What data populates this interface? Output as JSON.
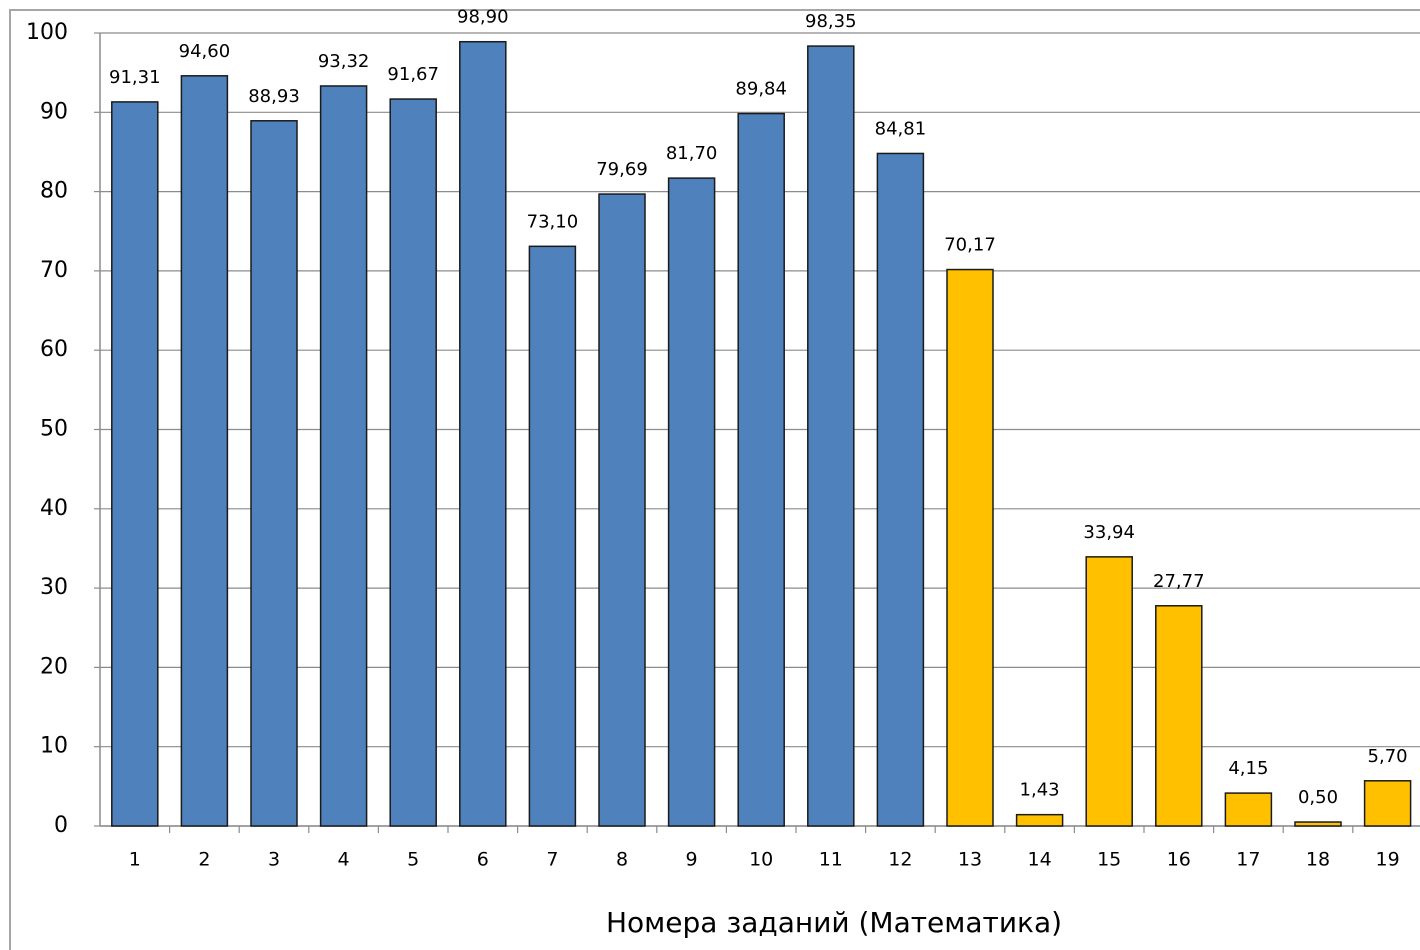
{
  "chart_data": {
    "type": "bar",
    "x_label": "Номера заданий (Математика)",
    "categories": [
      "1",
      "2",
      "3",
      "4",
      "5",
      "6",
      "7",
      "8",
      "9",
      "10",
      "11",
      "12",
      "13",
      "14",
      "15",
      "16",
      "17",
      "18",
      "19"
    ],
    "values": [
      91.31,
      94.6,
      88.93,
      93.32,
      91.67,
      98.9,
      73.1,
      79.69,
      81.7,
      89.84,
      98.35,
      84.81,
      70.17,
      1.43,
      33.94,
      27.77,
      4.15,
      0.5,
      5.7
    ],
    "value_labels": [
      "91,31",
      "94,60",
      "88,93",
      "93,32",
      "91,67",
      "98,90",
      "73,10",
      "79,69",
      "81,70",
      "89,84",
      "98,35",
      "84,81",
      "70,17",
      "1,43",
      "33,94",
      "27,77",
      "4,15",
      "0,50",
      "5,70"
    ],
    "colors": [
      "#4f81bd",
      "#4f81bd",
      "#4f81bd",
      "#4f81bd",
      "#4f81bd",
      "#4f81bd",
      "#4f81bd",
      "#4f81bd",
      "#4f81bd",
      "#4f81bd",
      "#4f81bd",
      "#4f81bd",
      "#ffc000",
      "#ffc000",
      "#ffc000",
      "#ffc000",
      "#ffc000",
      "#ffc000",
      "#ffc000"
    ],
    "ylim": [
      0,
      100
    ],
    "yticks": [
      0,
      10,
      20,
      30,
      40,
      50,
      60,
      70,
      80,
      90,
      100
    ],
    "grid": true
  }
}
